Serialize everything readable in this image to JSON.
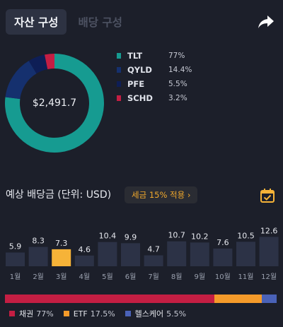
{
  "tabs": [
    {
      "label": "자산 구성",
      "active": true
    },
    {
      "label": "배당 구성",
      "active": false
    }
  ],
  "share_icon": "share-arrow-icon",
  "portfolio": {
    "total": "$2,491.7",
    "holdings": [
      {
        "ticker": "TLT",
        "pct_label": "77%",
        "pct": 77.0,
        "color": "#169b91"
      },
      {
        "ticker": "QYLD",
        "pct_label": "14.4%",
        "pct": 14.4,
        "color": "#15306e"
      },
      {
        "ticker": "PFE",
        "pct_label": "5.5%",
        "pct": 5.5,
        "color": "#0e1e56"
      },
      {
        "ticker": "SCHD",
        "pct_label": "3.2%",
        "pct": 3.2,
        "color": "#c41e43"
      }
    ]
  },
  "dividend": {
    "title": "예상 배당금 (단위: USD)",
    "tax_label": "세금 15% 적용 ›",
    "calendar_icon": "calendar-check-icon",
    "chart_data": {
      "type": "bar",
      "categories": [
        "1월",
        "2월",
        "3월",
        "4월",
        "5월",
        "6월",
        "7월",
        "8월",
        "9월",
        "10월",
        "11월",
        "12월"
      ],
      "values": [
        5.9,
        8.3,
        7.3,
        4.6,
        10.4,
        9.9,
        4.7,
        10.7,
        10.2,
        7.6,
        10.5,
        12.6
      ],
      "highlight_index": 2,
      "bar_color": "#2c3246",
      "highlight_color": "#f6b338"
    }
  },
  "sectors": [
    {
      "name": "채권",
      "pct_label": "77%",
      "pct": 77.0,
      "color": "#c41e43"
    },
    {
      "name": "ETF",
      "pct_label": "17.5%",
      "pct": 17.5,
      "color": "#f49a2a"
    },
    {
      "name": "헬스케어",
      "pct_label": "5.5%",
      "pct": 5.5,
      "color": "#4a62b8"
    }
  ]
}
